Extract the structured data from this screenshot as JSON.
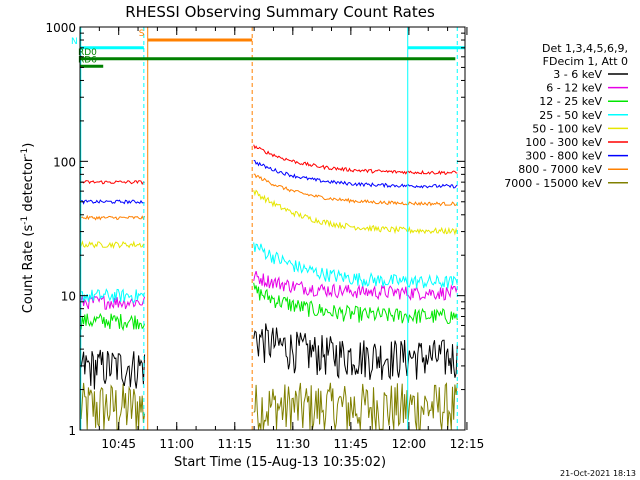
{
  "chart_data": {
    "type": "line",
    "title": "RHESSI Observing Summary Count Rates",
    "xlabel": "Start Time (15-Aug-13 10:35:02)",
    "ylabel_main": "Count Rate (s",
    "ylabel_sup1": "-1",
    "ylabel_mid": " detector",
    "ylabel_sup2": "-1",
    "ylabel_end": ")",
    "yscale": "log",
    "ylim": [
      1,
      1000
    ],
    "xlim_minutes": [
      0,
      99.5
    ],
    "x_ticks": [
      {
        "t": 10,
        "label": "10:45"
      },
      {
        "t": 25,
        "label": "11:00"
      },
      {
        "t": 40,
        "label": "11:15"
      },
      {
        "t": 55,
        "label": "11:30"
      },
      {
        "t": 70,
        "label": "11:45"
      },
      {
        "t": 85,
        "label": "12:00"
      },
      {
        "t": 100,
        "label": "12:15"
      }
    ],
    "y_ticks": [
      {
        "v": 1,
        "label": "1"
      },
      {
        "v": 10,
        "label": "10"
      },
      {
        "v": 100,
        "label": "100"
      },
      {
        "v": 1000,
        "label": "1000"
      }
    ],
    "legend_header": [
      "Det 1,3,4,5,6,9,",
      "FDecim 1, Att 0"
    ],
    "series": [
      {
        "name": "3 - 6 keV",
        "color": "#000000",
        "seg1": [
          3.0,
          3.0
        ],
        "seg2": [
          5.0,
          3.5
        ],
        "noise": 0.35
      },
      {
        "name": "6 - 12 keV",
        "color": "#e600e6",
        "seg1": [
          9.0,
          9.0
        ],
        "seg2": [
          14.0,
          10.5
        ],
        "noise": 0.12
      },
      {
        "name": "12 - 25 keV",
        "color": "#00e600",
        "seg1": [
          6.5,
          6.5
        ],
        "seg2": [
          11.0,
          7.0
        ],
        "noise": 0.14
      },
      {
        "name": "25 - 50 keV",
        "color": "#00ffff",
        "seg1": [
          10.0,
          10.0
        ],
        "seg2": [
          24.0,
          12.5
        ],
        "noise": 0.12
      },
      {
        "name": "50 - 100 keV",
        "color": "#e6e600",
        "seg1": [
          24.0,
          24.0
        ],
        "seg2": [
          60.0,
          30.0
        ],
        "noise": 0.05
      },
      {
        "name": "100 - 300 keV",
        "color": "#ff0000",
        "seg1": [
          70.0,
          70.0
        ],
        "seg2": [
          130.0,
          82.0
        ],
        "noise": 0.03
      },
      {
        "name": "300 - 800 keV",
        "color": "#0000ff",
        "seg1": [
          50.0,
          50.0
        ],
        "seg2": [
          100.0,
          65.0
        ],
        "noise": 0.03
      },
      {
        "name": "800 - 7000 keV",
        "color": "#ff8000",
        "seg1": [
          38.0,
          38.0
        ],
        "seg2": [
          80.0,
          48.0
        ],
        "noise": 0.03
      },
      {
        "name": "7000 - 15000 keV",
        "color": "#808000",
        "seg1": [
          1.5,
          1.5
        ],
        "seg2": [
          1.5,
          1.5
        ],
        "noise": 0.5
      }
    ],
    "segments": [
      {
        "t0": 0,
        "t1": 16.7
      },
      {
        "t0": 44.9,
        "t1": 97.5
      }
    ],
    "eclipse_lines": [
      {
        "t": 17.5,
        "color": "#ff8000"
      },
      {
        "t": 44.5,
        "color": "#ff8000"
      },
      {
        "t": 0.2,
        "color": "#00ffff"
      },
      {
        "t": 16.5,
        "color": "#00ffff"
      },
      {
        "t": 84.7,
        "color": "#00ffff"
      },
      {
        "t": 97.5,
        "color": "#00ffff"
      }
    ],
    "flag_bars": [
      {
        "label": "S",
        "color": "#ff8000",
        "t0": 17.5,
        "t1": 44.5,
        "level": 800
      },
      {
        "label": "N",
        "color": "#00ffff",
        "t0": 0,
        "t1": 16.5,
        "level": 700
      },
      {
        "label": "",
        "color": "#00ffff",
        "t0": 84.7,
        "t1": 99.5,
        "level": 700
      },
      {
        "label": "RD0",
        "color": "#008000",
        "t0": 0,
        "t1": 97.0,
        "level": 580
      },
      {
        "label": "RD6",
        "color": "#008000",
        "t0": 0,
        "t1": 6.0,
        "level": 510
      }
    ]
  },
  "footer": {
    "date": "21-Oct-2021 18:13"
  }
}
